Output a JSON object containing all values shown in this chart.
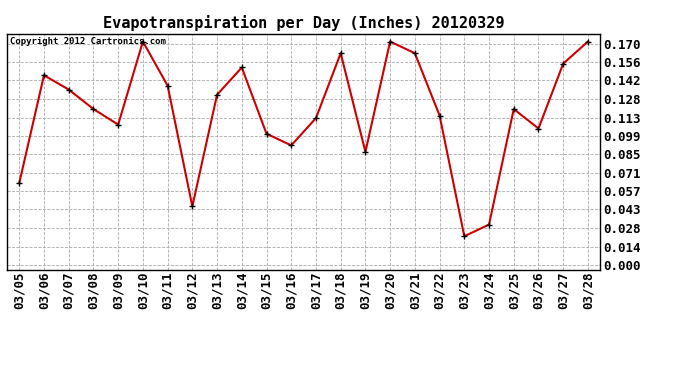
{
  "title": "Evapotranspiration per Day (Inches) 20120329",
  "copyright": "Copyright 2012 Cartronics.com",
  "dates": [
    "03/05",
    "03/06",
    "03/07",
    "03/08",
    "03/09",
    "03/10",
    "03/11",
    "03/12",
    "03/13",
    "03/14",
    "03/15",
    "03/16",
    "03/17",
    "03/18",
    "03/19",
    "03/20",
    "03/21",
    "03/22",
    "03/23",
    "03/24",
    "03/25",
    "03/26",
    "03/27",
    "03/28"
  ],
  "values": [
    0.063,
    0.146,
    0.135,
    0.12,
    0.108,
    0.172,
    0.138,
    0.045,
    0.131,
    0.152,
    0.101,
    0.092,
    0.113,
    0.163,
    0.087,
    0.172,
    0.163,
    0.115,
    0.022,
    0.031,
    0.12,
    0.105,
    0.155,
    0.172
  ],
  "yticks": [
    0.0,
    0.014,
    0.028,
    0.043,
    0.057,
    0.071,
    0.085,
    0.099,
    0.113,
    0.128,
    0.142,
    0.156,
    0.17
  ],
  "line_color": "#cc0000",
  "marker": "+",
  "marker_color": "#000000",
  "marker_size": 5,
  "line_width": 1.5,
  "grid_color": "#aaaaaa",
  "grid_style": "--",
  "bg_color": "#ffffff",
  "title_fontsize": 11,
  "copyright_fontsize": 6.5,
  "tick_fontsize": 9,
  "ytick_fontsize": 9,
  "ylim": [
    -0.004,
    0.178
  ]
}
